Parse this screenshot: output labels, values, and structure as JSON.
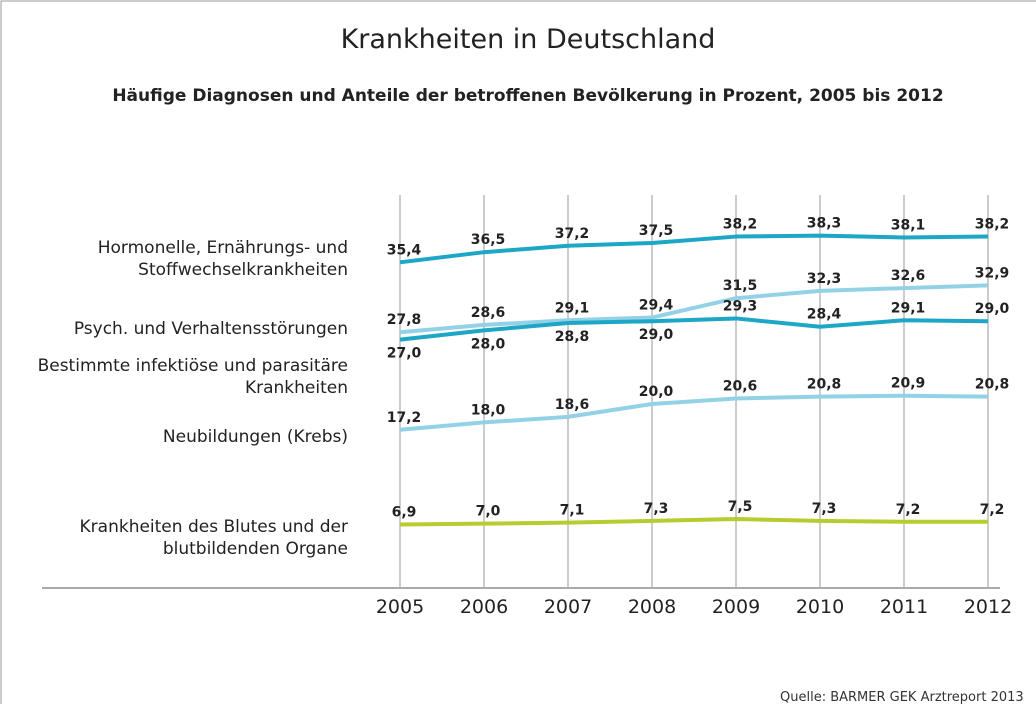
{
  "chart_data": {
    "type": "line",
    "title": "Krankheiten in Deutschland",
    "subtitle": "Häufige Diagnosen und Anteile der betroffenen Bevölkerung in Prozent, 2005 bis 2012",
    "source": "Quelle: BARMER GEK Arztreport 2013",
    "categories": [
      "2005",
      "2006",
      "2007",
      "2008",
      "2009",
      "2010",
      "2011",
      "2012"
    ],
    "ylim": [
      0,
      40
    ],
    "grid": true,
    "series": [
      {
        "name": "Hormonelle, Ernährungs- und Stoffwechselkrankheiten",
        "color": "#1ea6c6",
        "values": [
          35.4,
          36.5,
          37.2,
          37.5,
          38.2,
          38.3,
          38.1,
          38.2
        ],
        "value_labels": [
          "35,4",
          "36,5",
          "37,2",
          "37,5",
          "38,2",
          "38,3",
          "38,1",
          "38,2"
        ]
      },
      {
        "name": "Psych. und Verhaltensstörungen",
        "color": "#93d2e6",
        "values": [
          27.8,
          28.6,
          29.1,
          29.4,
          31.5,
          32.3,
          32.6,
          32.9
        ],
        "value_labels": [
          "27,8",
          "28,6",
          "29,1",
          "29,4",
          "31,5",
          "32,3",
          "32,6",
          "32,9"
        ]
      },
      {
        "name": "Bestimmte infektiöse und parasitäre Krankheiten",
        "color": "#1ea6c6",
        "values": [
          27.0,
          28.0,
          28.8,
          29.0,
          29.3,
          28.4,
          29.1,
          29.0
        ],
        "value_labels": [
          "27,0",
          "28,0",
          "28,8",
          "29,0",
          "29,3",
          "28,4",
          "29,1",
          "29,0"
        ]
      },
      {
        "name": "Neubildungen (Krebs)",
        "color": "#93d2e6",
        "values": [
          17.2,
          18.0,
          18.6,
          20.0,
          20.6,
          20.8,
          20.9,
          20.8
        ],
        "value_labels": [
          "17,2",
          "18,0",
          "18,6",
          "20,0",
          "20,6",
          "20,8",
          "20,9",
          "20,8"
        ]
      },
      {
        "name": "Krankheiten des Blutes und der blutbildenden Organe",
        "color": "#b7cd2f",
        "values": [
          6.9,
          7.0,
          7.1,
          7.3,
          7.5,
          7.3,
          7.2,
          7.2
        ],
        "value_labels": [
          "6,9",
          "7,0",
          "7,1",
          "7,3",
          "7,5",
          "7,3",
          "7,2",
          "7,2"
        ]
      }
    ]
  }
}
